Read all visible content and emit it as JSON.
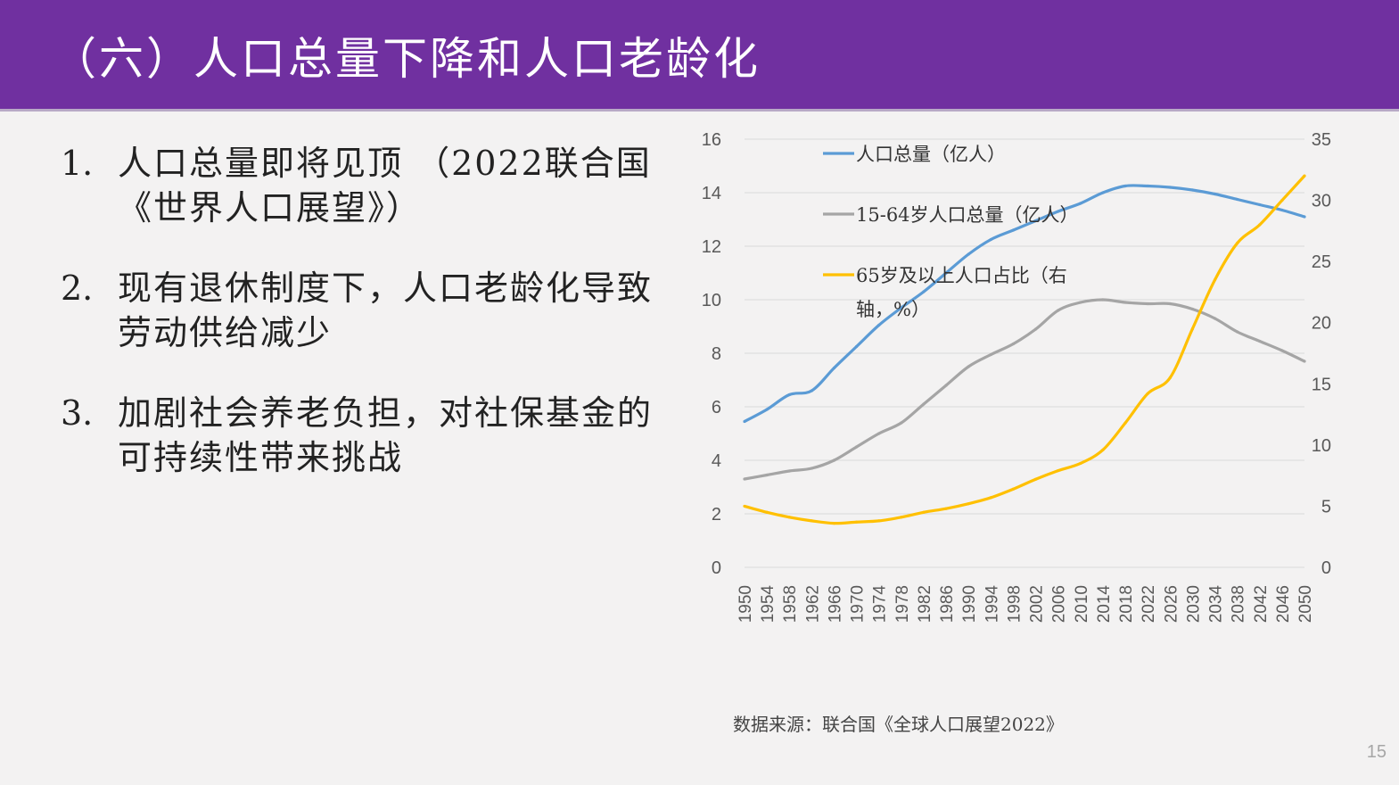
{
  "header": {
    "title": "（六）人口总量下降和人口老龄化"
  },
  "bullets": [
    {
      "num": "1.",
      "text": "人口总量即将见顶 （2022联合国《世界人口展望》）"
    },
    {
      "num": "2.",
      "text": "现有退休制度下，人口老龄化导致劳动供给减少"
    },
    {
      "num": "3.",
      "text": "加剧社会养老负担，对社保基金的可持续性带来挑战"
    }
  ],
  "source": "数据来源：联合国《全球人口展望2022》",
  "page_number": "15",
  "chart_data": {
    "type": "line",
    "x_ticks": [
      "1950",
      "1954",
      "1958",
      "1962",
      "1966",
      "1970",
      "1974",
      "1978",
      "1982",
      "1986",
      "1990",
      "1994",
      "1998",
      "2002",
      "2006",
      "2010",
      "2014",
      "2018",
      "2022",
      "2026",
      "2030",
      "2034",
      "2038",
      "2042",
      "2046",
      "2050"
    ],
    "x": [
      1950,
      1954,
      1958,
      1962,
      1966,
      1970,
      1974,
      1978,
      1982,
      1986,
      1990,
      1994,
      1998,
      2002,
      2006,
      2010,
      2014,
      2018,
      2022,
      2026,
      2030,
      2034,
      2038,
      2042,
      2046,
      2050
    ],
    "ylim_left": [
      0,
      16
    ],
    "yticks_left": [
      0,
      2,
      4,
      6,
      8,
      10,
      12,
      14,
      16
    ],
    "ylim_right": [
      0,
      35
    ],
    "yticks_right": [
      0,
      5,
      10,
      15,
      20,
      25,
      30,
      35
    ],
    "grid": true,
    "legend_position": "top-left inside plot",
    "series": [
      {
        "name": "人口总量（亿人）",
        "axis": "left",
        "color": "#5b9bd5",
        "values": [
          5.45,
          5.9,
          6.45,
          6.6,
          7.45,
          8.25,
          9.05,
          9.7,
          10.3,
          11.0,
          11.7,
          12.25,
          12.6,
          12.95,
          13.3,
          13.6,
          14.0,
          14.25,
          14.25,
          14.2,
          14.1,
          13.95,
          13.75,
          13.55,
          13.35,
          13.1
        ]
      },
      {
        "name": "15-64岁人口总量（亿人）",
        "axis": "left",
        "color": "#a5a5a5",
        "values": [
          3.3,
          3.45,
          3.6,
          3.7,
          4.0,
          4.5,
          5.0,
          5.4,
          6.1,
          6.8,
          7.5,
          7.95,
          8.35,
          8.9,
          9.6,
          9.9,
          10.0,
          9.9,
          9.85,
          9.85,
          9.65,
          9.3,
          8.8,
          8.45,
          8.1,
          7.7
        ]
      },
      {
        "name": "65岁及以上人口占比（右轴，%）",
        "axis": "right",
        "color": "#ffc000",
        "values": [
          5.0,
          4.5,
          4.1,
          3.8,
          3.6,
          3.7,
          3.8,
          4.1,
          4.5,
          4.8,
          5.2,
          5.7,
          6.4,
          7.2,
          7.9,
          8.5,
          9.6,
          11.8,
          14.2,
          15.5,
          19.5,
          23.5,
          26.5,
          28.0,
          30.0,
          32.0
        ]
      }
    ]
  }
}
